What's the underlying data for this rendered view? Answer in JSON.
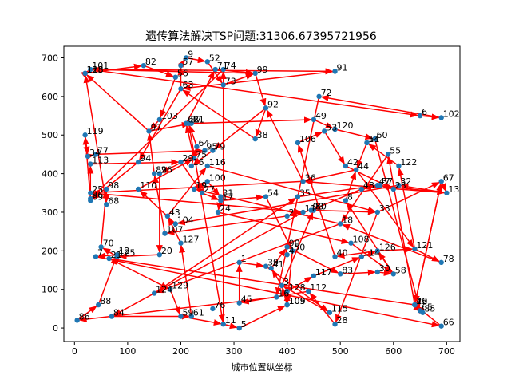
{
  "chart_data": {
    "type": "scatter",
    "title": "遗传算法解决TSP问题:31306.67395721956",
    "xlabel": "城市位置纵坐标",
    "ylabel": "",
    "xlim": [
      -20,
      725
    ],
    "ylim": [
      -35,
      730
    ],
    "x_ticks": [
      0,
      100,
      200,
      300,
      400,
      500,
      600,
      700
    ],
    "y_ticks": [
      0,
      100,
      200,
      300,
      400,
      500,
      600,
      700
    ],
    "grid": false,
    "point_color": "#1f77b4",
    "route_color": "#ff0000",
    "cities": [
      {
        "id": "1",
        "x": 310,
        "y": 170
      },
      {
        "id": "2",
        "x": 400,
        "y": 290
      },
      {
        "id": "3",
        "x": 390,
        "y": 110
      },
      {
        "id": "4",
        "x": 400,
        "y": 190
      },
      {
        "id": "5",
        "x": 310,
        "y": 0
      },
      {
        "id": "6",
        "x": 650,
        "y": 550
      },
      {
        "id": "7",
        "x": 40,
        "y": 185
      },
      {
        "id": "8",
        "x": 510,
        "y": 330
      },
      {
        "id": "9",
        "x": 210,
        "y": 700
      },
      {
        "id": "10",
        "x": 640,
        "y": 60
      },
      {
        "id": "11",
        "x": 280,
        "y": 10
      },
      {
        "id": "12",
        "x": 80,
        "y": 190
      },
      {
        "id": "13",
        "x": 700,
        "y": 350
      },
      {
        "id": "14",
        "x": 550,
        "y": 480
      },
      {
        "id": "15",
        "x": 220,
        "y": 420
      },
      {
        "id": "16",
        "x": 380,
        "y": 80
      },
      {
        "id": "17",
        "x": 275,
        "y": 330
      },
      {
        "id": "18",
        "x": 500,
        "y": 270
      },
      {
        "id": "19",
        "x": 225,
        "y": 360
      },
      {
        "id": "20",
        "x": 160,
        "y": 190
      },
      {
        "id": "21",
        "x": 65,
        "y": 180
      },
      {
        "id": "22",
        "x": 640,
        "y": 60
      },
      {
        "id": "23",
        "x": 600,
        "y": 360
      },
      {
        "id": "24",
        "x": 270,
        "y": 300
      },
      {
        "id": "25",
        "x": 30,
        "y": 350
      },
      {
        "id": "26",
        "x": 160,
        "y": 400
      },
      {
        "id": "27",
        "x": 240,
        "y": 350
      },
      {
        "id": "28",
        "x": 490,
        "y": 10
      },
      {
        "id": "29",
        "x": 200,
        "y": 430
      },
      {
        "id": "30",
        "x": 570,
        "y": 145
      },
      {
        "id": "31",
        "x": 275,
        "y": 340
      },
      {
        "id": "32",
        "x": 610,
        "y": 370
      },
      {
        "id": "33",
        "x": 570,
        "y": 300
      },
      {
        "id": "34",
        "x": 25,
        "y": 445
      },
      {
        "id": "35",
        "x": 420,
        "y": 340
      },
      {
        "id": "36",
        "x": 430,
        "y": 380
      },
      {
        "id": "37",
        "x": 575,
        "y": 370
      },
      {
        "id": "38",
        "x": 340,
        "y": 490
      },
      {
        "id": "39",
        "x": 360,
        "y": 160
      },
      {
        "id": "40",
        "x": 490,
        "y": 185
      },
      {
        "id": "41",
        "x": 370,
        "y": 155
      },
      {
        "id": "42",
        "x": 510,
        "y": 420
      },
      {
        "id": "43",
        "x": 175,
        "y": 290
      },
      {
        "id": "44",
        "x": 530,
        "y": 410
      },
      {
        "id": "45",
        "x": 310,
        "y": 65
      },
      {
        "id": "46",
        "x": 640,
        "y": 60
      },
      {
        "id": "47",
        "x": 570,
        "y": 370
      },
      {
        "id": "48",
        "x": 540,
        "y": 360
      },
      {
        "id": "49",
        "x": 450,
        "y": 540
      },
      {
        "id": "50",
        "x": 410,
        "y": 200
      },
      {
        "id": "51",
        "x": 550,
        "y": 480
      },
      {
        "id": "52",
        "x": 250,
        "y": 690
      },
      {
        "id": "53",
        "x": 470,
        "y": 510
      },
      {
        "id": "54",
        "x": 360,
        "y": 340
      },
      {
        "id": "55",
        "x": 590,
        "y": 450
      },
      {
        "id": "56",
        "x": 190,
        "y": 650
      },
      {
        "id": "57",
        "x": 200,
        "y": 680
      },
      {
        "id": "58",
        "x": 600,
        "y": 140
      },
      {
        "id": "59",
        "x": 200,
        "y": 30
      },
      {
        "id": "60",
        "x": 565,
        "y": 490
      },
      {
        "id": "61",
        "x": 220,
        "y": 30
      },
      {
        "id": "62",
        "x": 210,
        "y": 530
      },
      {
        "id": "63",
        "x": 200,
        "y": 620
      },
      {
        "id": "64",
        "x": 230,
        "y": 470
      },
      {
        "id": "65",
        "x": 650,
        "y": 45
      },
      {
        "id": "66",
        "x": 690,
        "y": 5
      },
      {
        "id": "67",
        "x": 690,
        "y": 380
      },
      {
        "id": "68",
        "x": 60,
        "y": 320
      },
      {
        "id": "69",
        "x": 30,
        "y": 330
      },
      {
        "id": "70",
        "x": 50,
        "y": 210
      },
      {
        "id": "71",
        "x": 265,
        "y": 670
      },
      {
        "id": "72",
        "x": 460,
        "y": 600
      },
      {
        "id": "73",
        "x": 280,
        "y": 630
      },
      {
        "id": "74",
        "x": 280,
        "y": 670
      },
      {
        "id": "75",
        "x": 225,
        "y": 440
      },
      {
        "id": "76",
        "x": 260,
        "y": 50
      },
      {
        "id": "77",
        "x": 40,
        "y": 450
      },
      {
        "id": "78",
        "x": 690,
        "y": 170
      },
      {
        "id": "79",
        "x": 260,
        "y": 460
      },
      {
        "id": "80",
        "x": 450,
        "y": 305
      },
      {
        "id": "81",
        "x": 220,
        "y": 530
      },
      {
        "id": "82",
        "x": 130,
        "y": 680
      },
      {
        "id": "83",
        "x": 500,
        "y": 140
      },
      {
        "id": "84",
        "x": 70,
        "y": 30
      },
      {
        "id": "85",
        "x": 655,
        "y": 40
      },
      {
        "id": "86",
        "x": 5,
        "y": 20
      },
      {
        "id": "87",
        "x": 215,
        "y": 530
      },
      {
        "id": "88",
        "x": 45,
        "y": 60
      },
      {
        "id": "89",
        "x": 150,
        "y": 400
      },
      {
        "id": "90",
        "x": 400,
        "y": 210
      },
      {
        "id": "91",
        "x": 490,
        "y": 665
      },
      {
        "id": "92",
        "x": 360,
        "y": 570
      },
      {
        "id": "93",
        "x": 445,
        "y": 305
      },
      {
        "id": "94",
        "x": 120,
        "y": 430
      },
      {
        "id": "95",
        "x": 245,
        "y": 460
      },
      {
        "id": "96",
        "x": 30,
        "y": 335
      },
      {
        "id": "97",
        "x": 140,
        "y": 510
      },
      {
        "id": "98",
        "x": 60,
        "y": 360
      },
      {
        "id": "99",
        "x": 340,
        "y": 660
      },
      {
        "id": "100",
        "x": 250,
        "y": 380
      },
      {
        "id": "101",
        "x": 30,
        "y": 670
      },
      {
        "id": "102",
        "x": 690,
        "y": 545
      },
      {
        "id": "103",
        "x": 160,
        "y": 540
      },
      {
        "id": "104",
        "x": 190,
        "y": 270
      },
      {
        "id": "105",
        "x": 400,
        "y": 60
      },
      {
        "id": "106",
        "x": 420,
        "y": 480
      },
      {
        "id": "107",
        "x": 170,
        "y": 245
      },
      {
        "id": "108",
        "x": 520,
        "y": 220
      },
      {
        "id": "109",
        "x": 400,
        "y": 60
      },
      {
        "id": "110",
        "x": 120,
        "y": 360
      },
      {
        "id": "111",
        "x": 430,
        "y": 300
      },
      {
        "id": "112",
        "x": 440,
        "y": 95
      },
      {
        "id": "113",
        "x": 30,
        "y": 425
      },
      {
        "id": "114",
        "x": 540,
        "y": 185
      },
      {
        "id": "115",
        "x": 480,
        "y": 40
      },
      {
        "id": "116",
        "x": 250,
        "y": 420
      },
      {
        "id": "117",
        "x": 450,
        "y": 135
      },
      {
        "id": "118",
        "x": 20,
        "y": 660
      },
      {
        "id": "119",
        "x": 20,
        "y": 500
      },
      {
        "id": "120",
        "x": 490,
        "y": 515
      },
      {
        "id": "121",
        "x": 640,
        "y": 205
      },
      {
        "id": "122",
        "x": 610,
        "y": 420
      },
      {
        "id": "123",
        "x": 20,
        "y": 660
      },
      {
        "id": "124",
        "x": 150,
        "y": 90
      },
      {
        "id": "125",
        "x": 80,
        "y": 185
      },
      {
        "id": "126",
        "x": 570,
        "y": 200
      },
      {
        "id": "127",
        "x": 200,
        "y": 220
      },
      {
        "id": "128",
        "x": 400,
        "y": 95
      },
      {
        "id": "129",
        "x": 180,
        "y": 100
      }
    ],
    "route": [
      [
        "101",
        "91"
      ],
      [
        "91",
        "63"
      ],
      [
        "63",
        "57"
      ],
      [
        "57",
        "9"
      ],
      [
        "9",
        "52"
      ],
      [
        "52",
        "73"
      ],
      [
        "73",
        "99"
      ],
      [
        "99",
        "101"
      ],
      [
        "118",
        "82"
      ],
      [
        "82",
        "56"
      ],
      [
        "56",
        "103"
      ],
      [
        "103",
        "97"
      ],
      [
        "97",
        "123"
      ],
      [
        "123",
        "101"
      ],
      [
        "101",
        "6"
      ],
      [
        "6",
        "102"
      ],
      [
        "102",
        "72"
      ],
      [
        "72",
        "16"
      ],
      [
        "16",
        "86"
      ],
      [
        "86",
        "88"
      ],
      [
        "88",
        "12"
      ],
      [
        "12",
        "7"
      ],
      [
        "7",
        "66"
      ],
      [
        "66",
        "10"
      ],
      [
        "10",
        "67"
      ],
      [
        "67",
        "13"
      ],
      [
        "13",
        "36"
      ],
      [
        "36",
        "25"
      ],
      [
        "25",
        "111"
      ],
      [
        "111",
        "84"
      ],
      [
        "84",
        "61"
      ],
      [
        "61",
        "127"
      ],
      [
        "127",
        "43"
      ],
      [
        "43",
        "116"
      ],
      [
        "116",
        "33"
      ],
      [
        "33",
        "28"
      ],
      [
        "28",
        "112"
      ],
      [
        "112",
        "45"
      ],
      [
        "45",
        "1"
      ],
      [
        "1",
        "39"
      ],
      [
        "39",
        "115"
      ],
      [
        "115",
        "3"
      ],
      [
        "3",
        "41"
      ],
      [
        "41",
        "90"
      ],
      [
        "90",
        "83"
      ],
      [
        "83",
        "30"
      ],
      [
        "30",
        "58"
      ],
      [
        "58",
        "8"
      ],
      [
        "8",
        "44"
      ],
      [
        "44",
        "121"
      ],
      [
        "121",
        "78"
      ],
      [
        "78",
        "18"
      ],
      [
        "18",
        "124"
      ],
      [
        "124",
        "35"
      ],
      [
        "35",
        "47"
      ],
      [
        "47",
        "13"
      ],
      [
        "13",
        "32"
      ],
      [
        "32",
        "104"
      ],
      [
        "104",
        "110"
      ],
      [
        "110",
        "75"
      ],
      [
        "75",
        "62"
      ],
      [
        "62",
        "71"
      ],
      [
        "71",
        "99"
      ],
      [
        "99",
        "92"
      ],
      [
        "92",
        "38"
      ],
      [
        "38",
        "63"
      ],
      [
        "63",
        "94"
      ],
      [
        "94",
        "69"
      ],
      [
        "69",
        "113"
      ],
      [
        "113",
        "29"
      ],
      [
        "29",
        "27"
      ],
      [
        "27",
        "17"
      ],
      [
        "17",
        "54"
      ],
      [
        "54",
        "50"
      ],
      [
        "50",
        "105"
      ],
      [
        "105",
        "128"
      ],
      [
        "128",
        "117"
      ],
      [
        "117",
        "114"
      ],
      [
        "114",
        "126"
      ],
      [
        "126",
        "40"
      ],
      [
        "40",
        "106"
      ],
      [
        "106",
        "53"
      ],
      [
        "53",
        "42"
      ],
      [
        "42",
        "23"
      ],
      [
        "23",
        "37"
      ],
      [
        "37",
        "48"
      ],
      [
        "48",
        "93"
      ],
      [
        "93",
        "2"
      ],
      [
        "2",
        "107"
      ],
      [
        "107",
        "89"
      ],
      [
        "89",
        "97"
      ],
      [
        "97",
        "81"
      ],
      [
        "81",
        "49"
      ],
      [
        "49",
        "120"
      ],
      [
        "120",
        "60"
      ],
      [
        "60",
        "65"
      ],
      [
        "65",
        "85"
      ],
      [
        "85",
        "22"
      ],
      [
        "22",
        "55"
      ],
      [
        "55",
        "18"
      ],
      [
        "18",
        "19"
      ],
      [
        "19",
        "100"
      ],
      [
        "100",
        "31"
      ],
      [
        "31",
        "24"
      ],
      [
        "24",
        "108"
      ],
      [
        "108",
        "58"
      ],
      [
        "58",
        "126"
      ],
      [
        "126",
        "121"
      ],
      [
        "121",
        "122"
      ],
      [
        "122",
        "14"
      ],
      [
        "14",
        "44"
      ],
      [
        "44",
        "36"
      ],
      [
        "36",
        "92"
      ],
      [
        "92",
        "79"
      ],
      [
        "79",
        "15"
      ],
      [
        "15",
        "64"
      ],
      [
        "64",
        "87"
      ],
      [
        "87",
        "11"
      ],
      [
        "11",
        "5"
      ],
      [
        "5",
        "109"
      ],
      [
        "109",
        "3"
      ],
      [
        "3",
        "80"
      ],
      [
        "80",
        "33"
      ],
      [
        "33",
        "67"
      ],
      [
        "67",
        "46"
      ],
      [
        "46",
        "21"
      ],
      [
        "21",
        "129"
      ],
      [
        "129",
        "59"
      ],
      [
        "59",
        "11"
      ],
      [
        "11",
        "74"
      ],
      [
        "74",
        "96"
      ],
      [
        "96",
        "119"
      ],
      [
        "119",
        "34"
      ],
      [
        "34",
        "77"
      ],
      [
        "77",
        "95"
      ],
      [
        "95",
        "26"
      ],
      [
        "26",
        "20"
      ],
      [
        "20",
        "125"
      ],
      [
        "125",
        "70"
      ],
      [
        "70",
        "98"
      ],
      [
        "98",
        "68"
      ],
      [
        "68",
        "118"
      ]
    ]
  }
}
